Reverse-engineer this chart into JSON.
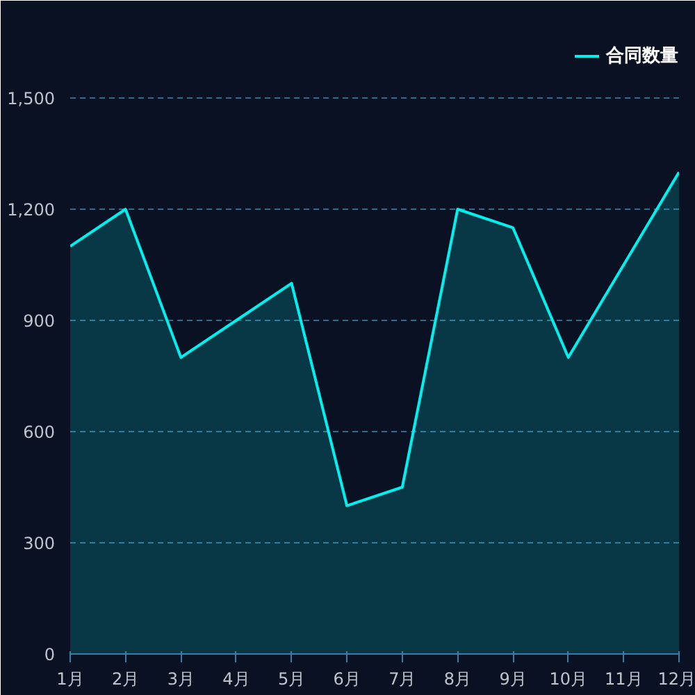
{
  "chart_data": {
    "type": "area",
    "categories": [
      "1月",
      "2月",
      "3月",
      "4月",
      "5月",
      "6月",
      "7月",
      "8月",
      "9月",
      "10月",
      "11月",
      "12月"
    ],
    "series": [
      {
        "name": "合同数量",
        "color": "#00f0f0",
        "values": [
          1100,
          1200,
          800,
          900,
          1000,
          400,
          450,
          1200,
          1150,
          800,
          1050,
          1300
        ]
      }
    ],
    "ylim": [
      0,
      1650
    ],
    "yticks": [
      {
        "value": 0,
        "label": "0"
      },
      {
        "value": 300,
        "label": "300"
      },
      {
        "value": 600,
        "label": "600"
      },
      {
        "value": 900,
        "label": "900"
      },
      {
        "value": 1200,
        "label": "1,200"
      },
      {
        "value": 1500,
        "label": "1,500"
      }
    ],
    "grid": "y",
    "legend": "top right"
  }
}
